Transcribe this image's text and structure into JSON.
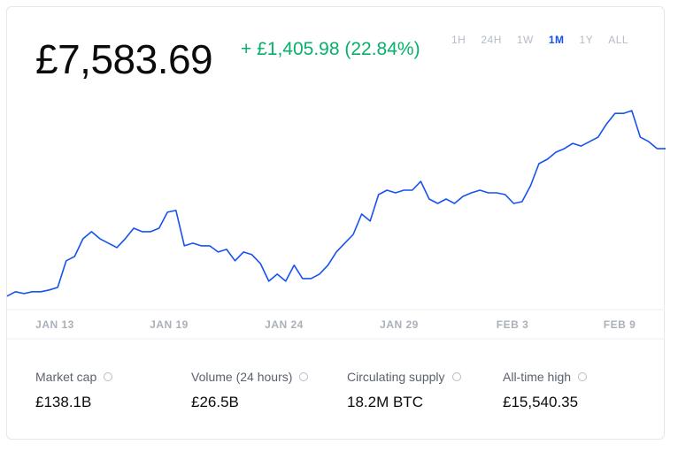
{
  "header": {
    "price": "£7,583.69",
    "change": "+ £1,405.98 (22.84%)"
  },
  "ranges": [
    "1H",
    "24H",
    "1W",
    "1M",
    "1Y",
    "ALL"
  ],
  "active_range": "1M",
  "chart_data": {
    "type": "line",
    "color": "#1652f0",
    "xticks": [
      "JAN 13",
      "JAN 19",
      "JAN 24",
      "JAN 29",
      "FEB 3",
      "FEB 9"
    ],
    "ylim": [
      6050,
      8200
    ],
    "values": [
      6178,
      6220,
      6203,
      6220,
      6220,
      6237,
      6262,
      6515,
      6557,
      6725,
      6793,
      6725,
      6683,
      6641,
      6725,
      6826,
      6793,
      6793,
      6826,
      6978,
      6995,
      6658,
      6683,
      6658,
      6658,
      6599,
      6624,
      6515,
      6599,
      6574,
      6489,
      6321,
      6388,
      6321,
      6473,
      6346,
      6346,
      6388,
      6473,
      6599,
      6683,
      6767,
      6961,
      6894,
      7146,
      7188,
      7163,
      7188,
      7188,
      7272,
      7104,
      7062,
      7104,
      7062,
      7129,
      7163,
      7188,
      7163,
      7163,
      7146,
      7062,
      7079,
      7230,
      7441,
      7483,
      7550,
      7584,
      7634,
      7609,
      7651,
      7693,
      7819,
      7920,
      7920,
      7946,
      7693,
      7651,
      7584,
      7584
    ]
  },
  "stats": [
    {
      "label": "Market cap",
      "value": "£138.1B"
    },
    {
      "label": "Volume (24 hours)",
      "value": "£26.5B"
    },
    {
      "label": "Circulating supply",
      "value": "18.2M BTC"
    },
    {
      "label": "All-time high",
      "value": "£15,540.35"
    }
  ]
}
